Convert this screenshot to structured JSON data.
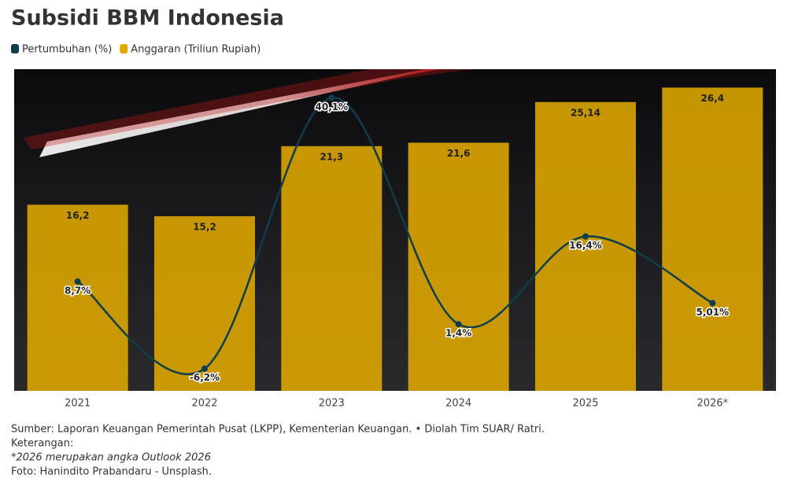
{
  "chart_data": {
    "type": "bar",
    "title": "Subsidi BBM Indonesia",
    "categories": [
      "2021",
      "2022",
      "2023",
      "2024",
      "2025",
      "2026*"
    ],
    "series": [
      {
        "name": "Pertumbuhan (%)",
        "type": "line",
        "axis": "y2",
        "color": "#0f3d4c",
        "values": [
          8.7,
          -6.2,
          40.1,
          1.4,
          16.4,
          5.01
        ],
        "value_labels": [
          "8,7%",
          "-6,2%",
          "40,1%",
          "1,4%",
          "16,4%",
          "5,01%"
        ]
      },
      {
        "name": "Anggaran (Triliun Rupiah)",
        "type": "bar",
        "color": "#e0a800",
        "values": [
          16.2,
          15.2,
          21.3,
          21.6,
          25.14,
          26.4
        ],
        "value_labels": [
          "16,2",
          "15,2",
          "21,3",
          "21,6",
          "25,14",
          "26,4"
        ]
      }
    ],
    "ylim": [
      0,
      28
    ],
    "y2lim": [
      -10,
      45
    ],
    "notes": [
      "Sumber: Laporan Keuangan Pemerintah Pusat (LKPP), Kementerian Keuangan. • Diolah Tim SUAR/ Ratri.",
      "Keterangan:",
      "*2026 merupakan angka Outlook 2026",
      "Foto: Hanindito Prabandaru - Unsplash."
    ]
  }
}
